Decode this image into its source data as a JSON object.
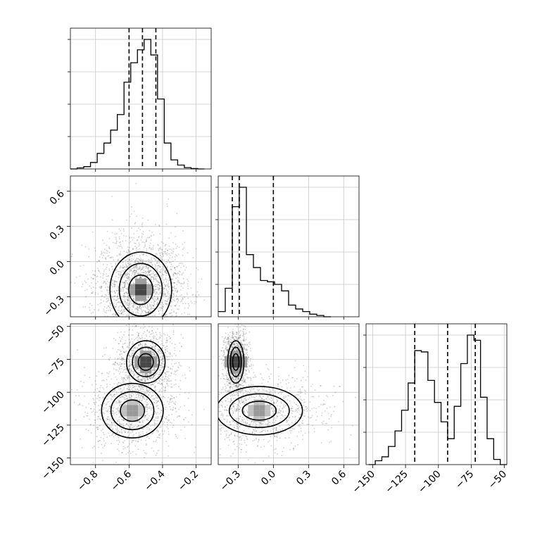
{
  "chart_data": {
    "type": "corner",
    "title": "",
    "grid": true,
    "colors": {
      "line": "#000000",
      "grid": "#c8c8c8",
      "points": "#555555",
      "background": "#ffffff"
    },
    "parameters": [
      {
        "name": "",
        "range": [
          -0.95,
          -0.11
        ],
        "ticks": [
          -0.8,
          -0.6,
          -0.4,
          -0.2
        ],
        "tick_labels": [
          "−0.8",
          "−0.6",
          "−0.4",
          "−0.2"
        ]
      },
      {
        "name": "",
        "range": [
          -0.47,
          0.73
        ],
        "ticks": [
          -0.3,
          0.0,
          0.3,
          0.6
        ],
        "tick_labels": [
          "−0.3",
          "0.0",
          "0.3",
          "0.6"
        ]
      },
      {
        "name": "",
        "range": [
          -155,
          -48
        ],
        "ticks": [
          -150,
          -125,
          -100,
          -75,
          -50
        ],
        "tick_labels": [
          "−150",
          "−125",
          "−100",
          "−75",
          "−50"
        ]
      }
    ],
    "histograms": [
      {
        "param": 0,
        "bin_edges": [
          -0.95,
          -0.91,
          -0.87,
          -0.83,
          -0.79,
          -0.75,
          -0.71,
          -0.67,
          -0.63,
          -0.59,
          -0.55,
          -0.51,
          -0.47,
          -0.43,
          -0.39,
          -0.35,
          -0.31,
          -0.27,
          -0.23,
          -0.19,
          -0.15
        ],
        "counts": [
          0.0,
          0.008,
          0.018,
          0.05,
          0.12,
          0.2,
          0.3,
          0.42,
          0.67,
          0.82,
          0.92,
          1.0,
          0.88,
          0.54,
          0.2,
          0.07,
          0.03,
          0.01,
          0.003,
          0.0
        ],
        "quantiles": [
          -0.6,
          -0.52,
          -0.44
        ]
      },
      {
        "param": 1,
        "bin_edges": [
          -0.47,
          -0.41,
          -0.35,
          -0.29,
          -0.23,
          -0.17,
          -0.11,
          -0.05,
          0.01,
          0.07,
          0.13,
          0.19,
          0.25,
          0.31,
          0.37,
          0.43,
          0.49
        ],
        "counts": [
          0.04,
          0.22,
          0.85,
          1.0,
          0.48,
          0.38,
          0.28,
          0.27,
          0.25,
          0.2,
          0.09,
          0.06,
          0.04,
          0.02,
          0.01,
          0.0
        ],
        "quantiles": [
          -0.35,
          -0.29,
          0.0
        ]
      },
      {
        "param": 2,
        "bin_edges": [
          -153,
          -148,
          -143,
          -138,
          -133,
          -128,
          -123,
          -118,
          -113,
          -108,
          -103,
          -98,
          -93,
          -88,
          -83,
          -78,
          -73,
          -68,
          -63,
          -58,
          -53,
          -48
        ],
        "counts": [
          0.0,
          0.03,
          0.06,
          0.14,
          0.26,
          0.42,
          0.63,
          0.88,
          0.87,
          0.65,
          0.48,
          0.33,
          0.2,
          0.45,
          0.78,
          1.0,
          0.96,
          0.52,
          0.2,
          0.04,
          0.0
        ],
        "quantiles": [
          -118,
          -93,
          -72
        ]
      }
    ],
    "scatter_panels": [
      {
        "x_param": 0,
        "y_param": 1,
        "modes": [
          {
            "weight": 1.0,
            "x_center": -0.53,
            "y_center": -0.24,
            "x_sd": 0.08,
            "y_sd": 0.14
          }
        ],
        "density_peak": {
          "x": -0.5,
          "y": -0.3
        }
      },
      {
        "x_param": 0,
        "y_param": 2,
        "modes": [
          {
            "weight": 0.5,
            "x_center": -0.5,
            "y_center": -77,
            "x_sd": 0.05,
            "y_sd": 7
          },
          {
            "weight": 0.5,
            "x_center": -0.58,
            "y_center": -114,
            "x_sd": 0.08,
            "y_sd": 9
          }
        ],
        "density_peak": {
          "x": -0.5,
          "y": -77
        }
      },
      {
        "x_param": 1,
        "y_param": 2,
        "modes": [
          {
            "weight": 0.5,
            "x_center": -0.32,
            "y_center": -77,
            "x_sd": 0.03,
            "y_sd": 7
          },
          {
            "weight": 0.5,
            "x_center": -0.12,
            "y_center": -114,
            "x_sd": 0.16,
            "y_sd": 8
          }
        ],
        "density_peak": {
          "x": -0.32,
          "y": -77
        }
      }
    ]
  }
}
